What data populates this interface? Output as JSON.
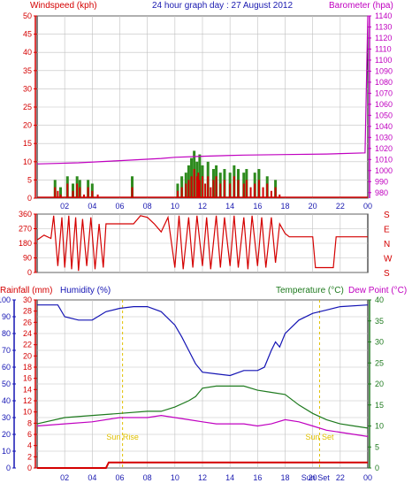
{
  "title": "24 hour graph day : 27 August 2012",
  "colors": {
    "wind": "#d40000",
    "gust": "#2e8b1e",
    "windavg": "#1010c8",
    "baro": "#c000c0",
    "dir": "#d40000",
    "rain": "#d40000",
    "humidity": "#1414b4",
    "temperature": "#1e7a1e",
    "dewpoint": "#c000c0",
    "sun": "#e0c000",
    "grid": "#c0c0c0"
  },
  "x_ticks": [
    "02",
    "04",
    "06",
    "08",
    "10",
    "12",
    "14",
    "16",
    "18",
    "20",
    "22",
    "00"
  ],
  "panel1": {
    "left_label": "Windspeed (kph)",
    "right_label": "Barometer (hpa)",
    "left_ticks": [
      "0",
      "5",
      "10",
      "15",
      "20",
      "25",
      "30",
      "35",
      "40",
      "45",
      "50"
    ],
    "right_ticks": [
      "980",
      "990",
      "1000",
      "1010",
      "1020",
      "1030",
      "1040",
      "1050",
      "1060",
      "1070",
      "1080",
      "1090",
      "1100",
      "1110",
      "1120",
      "1130",
      "1140"
    ]
  },
  "panel2": {
    "left_ticks": [
      "0",
      "90",
      "180",
      "270",
      "360"
    ],
    "compass": [
      "S",
      "E",
      "N",
      "W",
      "S"
    ]
  },
  "panel3": {
    "rain_label": "Rainfall (mm)",
    "humidity_label": "Humidity (%)",
    "temp_label": "Temperature (°C)",
    "dew_label": "Dew Point (°C)",
    "humidity_ticks": [
      "0",
      "10",
      "20",
      "30",
      "40",
      "50",
      "60",
      "70",
      "80",
      "90",
      "100"
    ],
    "rain_ticks": [
      "0",
      "2",
      "4",
      "6",
      "8",
      "10",
      "12",
      "14",
      "16",
      "18",
      "20",
      "22",
      "24",
      "26",
      "28",
      "30"
    ],
    "temp_ticks": [
      "0",
      "5",
      "10",
      "15",
      "20",
      "25",
      "30",
      "35",
      "40"
    ],
    "sunrise_label": "Sun Rise",
    "sunset_label": "Sun Set",
    "bottom_tick_extra": "Sun Set"
  },
  "chart_data": [
    {
      "type": "line",
      "title": "24 hour graph day : 27 August 2012",
      "xlabel": "",
      "ylabel": "Windspeed (kph)",
      "y2label": "Barometer (hpa)",
      "xlim": [
        0,
        24
      ],
      "ylim": [
        0,
        50
      ],
      "y2lim": [
        975,
        1140
      ],
      "series": [
        {
          "name": "Barometer (hpa)",
          "axis": "right",
          "x": [
            0,
            3,
            6,
            9,
            10,
            12,
            15,
            18,
            21,
            23.8,
            24
          ],
          "y": [
            1006,
            1007,
            1009,
            1011,
            1012,
            1013,
            1014,
            1014.5,
            1015,
            1016,
            1140
          ]
        },
        {
          "name": "Windspeed (kph)",
          "axis": "left",
          "style": "bars",
          "x": [
            0,
            1.3,
            1.5,
            1.7,
            2.2,
            2.6,
            2.9,
            3.1,
            3.4,
            3.7,
            4.0,
            4.4,
            5.0,
            5.5,
            6.0,
            6.9,
            7.8,
            8.5,
            9.5,
            10.2,
            10.5,
            10.8,
            11.0,
            11.2,
            11.4,
            11.6,
            11.7,
            11.8,
            12.0,
            12.2,
            12.4,
            12.6,
            12.8,
            13.0,
            13.3,
            13.6,
            14.0,
            14.3,
            14.6,
            15.0,
            15.2,
            15.5,
            15.8,
            16.1,
            16.4,
            16.7,
            17.0,
            17.3,
            17.6,
            18.0,
            20.0,
            22.0,
            24.0
          ],
          "y": [
            0,
            3,
            2,
            1,
            4,
            2,
            4,
            3,
            1,
            3,
            2,
            1,
            0,
            0,
            0,
            3,
            0,
            0,
            0,
            2,
            3,
            4,
            5,
            6,
            8,
            6,
            7,
            5,
            6,
            4,
            6,
            3,
            5,
            6,
            4,
            5,
            4,
            6,
            5,
            4,
            5,
            3,
            4,
            5,
            3,
            4,
            2,
            3,
            1,
            0,
            0,
            0,
            0
          ]
        },
        {
          "name": "Gust (kph)",
          "axis": "left",
          "style": "bars",
          "x": [
            1.3,
            1.7,
            2.2,
            2.6,
            2.9,
            3.1,
            3.7,
            4.0,
            6.9,
            10.2,
            10.5,
            10.8,
            11.0,
            11.2,
            11.4,
            11.6,
            11.8,
            12.0,
            12.4,
            12.8,
            13.0,
            13.3,
            13.6,
            14.0,
            14.3,
            14.6,
            15.0,
            15.2,
            15.8,
            16.1,
            16.7,
            17.3
          ],
          "y": [
            5,
            3,
            6,
            4,
            6,
            5,
            5,
            4,
            6,
            4,
            6,
            7,
            9,
            11,
            13,
            10,
            12,
            9,
            10,
            8,
            9,
            7,
            8,
            7,
            9,
            8,
            7,
            8,
            7,
            8,
            6,
            5
          ]
        }
      ]
    },
    {
      "type": "line",
      "ylabel": "Wind direction",
      "xlim": [
        0,
        24
      ],
      "ylim": [
        0,
        360
      ],
      "series": [
        {
          "name": "Wind direction",
          "x": [
            0,
            0.5,
            1.0,
            1.2,
            1.5,
            1.8,
            2.0,
            2.3,
            2.5,
            2.8,
            3.0,
            3.3,
            3.6,
            3.9,
            4.2,
            4.5,
            4.8,
            5.0,
            6.0,
            7.0,
            7.5,
            8.0,
            8.5,
            9.0,
            9.5,
            10.0,
            10.3,
            10.6,
            11.0,
            11.3,
            11.6,
            12.0,
            12.3,
            12.6,
            13.0,
            13.3,
            13.6,
            14.0,
            14.3,
            14.6,
            15.0,
            15.3,
            15.6,
            16.0,
            16.3,
            16.6,
            17.0,
            17.3,
            17.6,
            18.0,
            18.3,
            20.0,
            20.2,
            20.4,
            21.5,
            21.7,
            24.0
          ],
          "y": [
            200,
            230,
            210,
            350,
            40,
            340,
            30,
            350,
            20,
            340,
            10,
            330,
            40,
            340,
            20,
            300,
            30,
            300,
            300,
            300,
            350,
            340,
            300,
            250,
            340,
            30,
            350,
            20,
            340,
            30,
            350,
            40,
            340,
            20,
            350,
            30,
            340,
            40,
            350,
            30,
            340,
            20,
            350,
            40,
            340,
            30,
            340,
            60,
            300,
            240,
            220,
            220,
            30,
            30,
            30,
            220,
            220
          ]
        }
      ]
    },
    {
      "type": "line",
      "xlabel": "",
      "ylabel": "Humidity (%)",
      "y2label": "Temperature (°C)",
      "xlim": [
        0,
        24
      ],
      "ylim": [
        0,
        100
      ],
      "y2lim": [
        0,
        40
      ],
      "series": [
        {
          "name": "Humidity (%)",
          "axis": "left",
          "x": [
            0,
            1.5,
            2.0,
            3.0,
            4.0,
            5.0,
            6.0,
            7.0,
            8.0,
            9.0,
            10.0,
            10.5,
            11.0,
            11.5,
            12.0,
            13.0,
            14.0,
            15.0,
            16.0,
            16.5,
            17.0,
            17.3,
            17.6,
            18.0,
            19.0,
            20.0,
            21.0,
            22.0,
            24.0
          ],
          "y": [
            97,
            97,
            90,
            88,
            88,
            93,
            95,
            96,
            96,
            93,
            85,
            78,
            70,
            62,
            57,
            56,
            55,
            58,
            58,
            60,
            70,
            75,
            72,
            80,
            88,
            92,
            94,
            96,
            97
          ]
        },
        {
          "name": "Temperature (°C)",
          "axis": "right",
          "x": [
            0,
            2.0,
            4.0,
            6.0,
            8.0,
            9.0,
            10.0,
            11.0,
            11.5,
            12.0,
            13.0,
            14.0,
            15.0,
            16.0,
            17.0,
            18.0,
            19.0,
            20.0,
            21.0,
            22.0,
            23.0,
            24.0
          ],
          "y": [
            10.5,
            12.0,
            12.5,
            13.0,
            13.5,
            13.5,
            14.5,
            16.0,
            17.0,
            19.0,
            19.5,
            19.5,
            19.5,
            18.5,
            18.0,
            17.5,
            15.0,
            13.0,
            11.5,
            10.5,
            10.0,
            9.5
          ]
        },
        {
          "name": "Dew Point (°C)",
          "axis": "right",
          "x": [
            0,
            2.0,
            4.0,
            6.0,
            8.0,
            9.0,
            10.0,
            11.0,
            12.0,
            13.0,
            14.0,
            15.0,
            16.0,
            17.0,
            18.0,
            19.0,
            20.0,
            21.0,
            22.0,
            23.0,
            24.0
          ],
          "y": [
            10.0,
            10.5,
            11.0,
            12.0,
            12.0,
            12.5,
            12.0,
            11.5,
            11.0,
            10.5,
            10.5,
            10.5,
            10.0,
            10.5,
            11.5,
            11.0,
            10.0,
            9.0,
            8.5,
            8.0,
            7.5
          ]
        },
        {
          "name": "Rainfall (mm)",
          "axis": "rain",
          "x": [
            0,
            5.0,
            5.2,
            24.0
          ],
          "y": [
            0,
            0,
            1,
            1
          ]
        }
      ],
      "annotations": [
        {
          "text": "Sun Rise",
          "x": 6.2
        },
        {
          "text": "Sun Set",
          "x": 20.5
        }
      ]
    }
  ]
}
